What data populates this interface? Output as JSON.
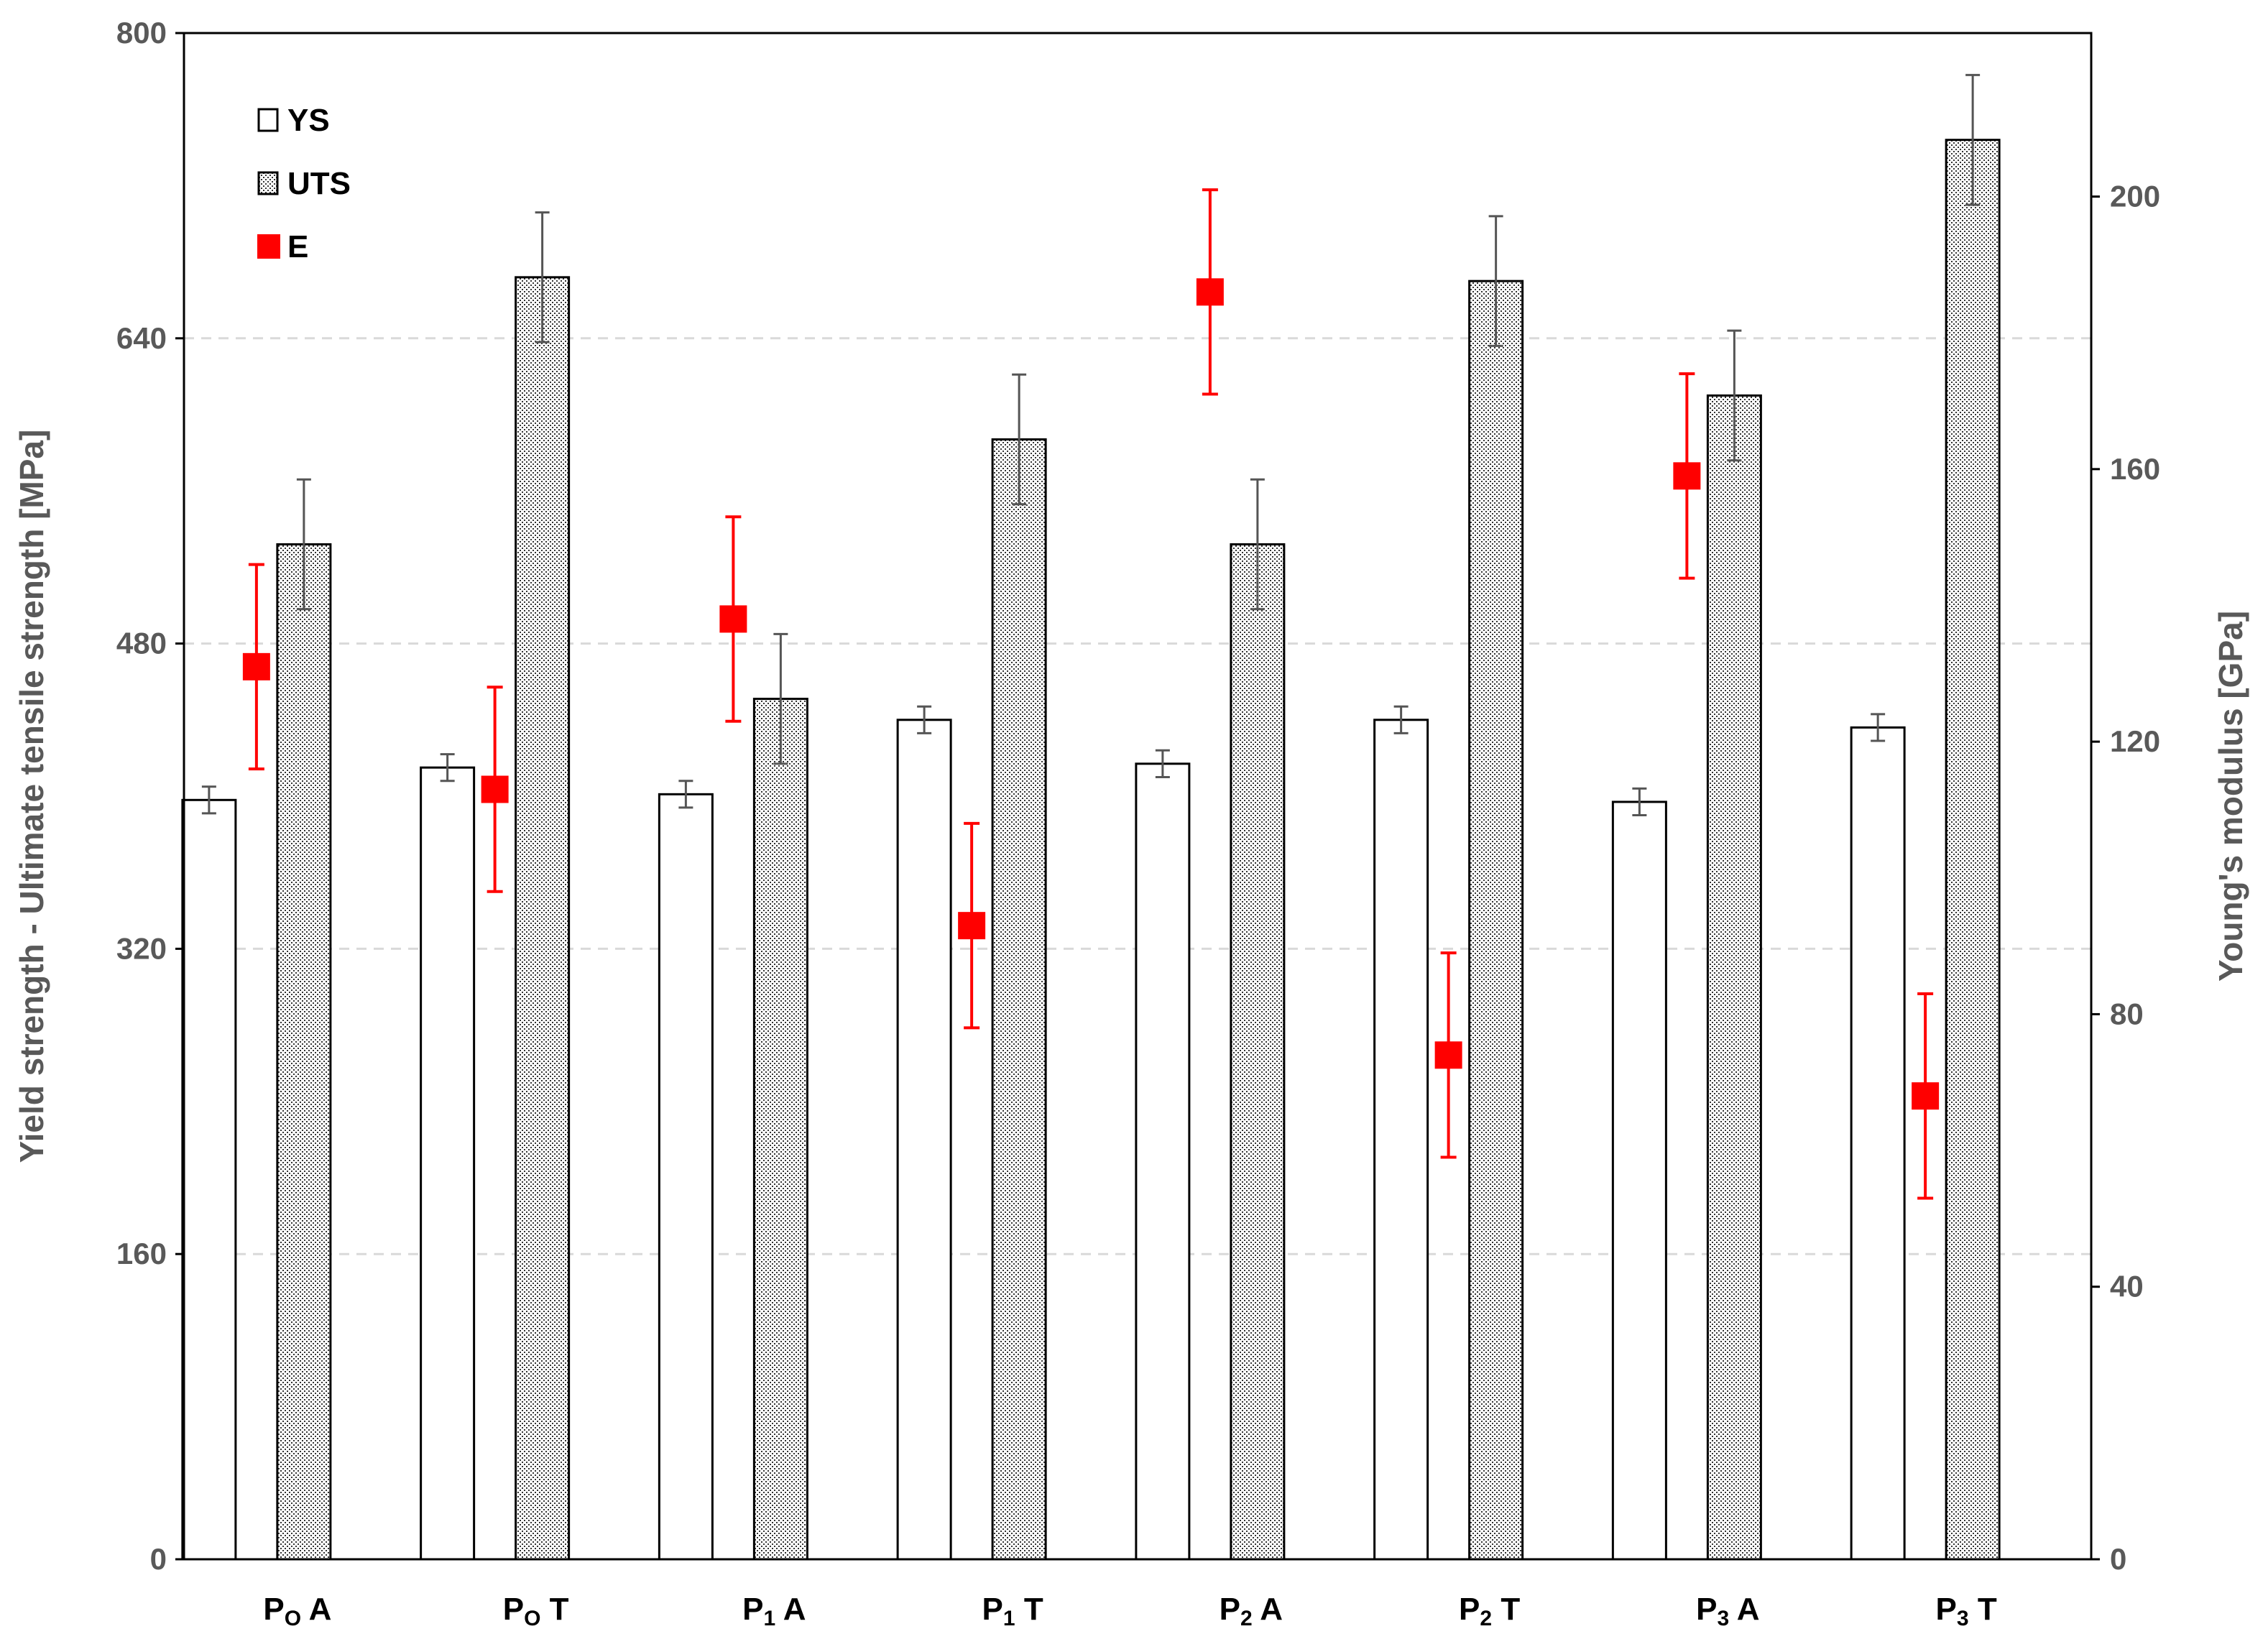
{
  "chart_data": {
    "type": "bar",
    "title": "",
    "ylabel": "Yield strength - Ultimate tensile strength [MPa]",
    "y2label": "Young's modulus [GPa]",
    "ylim": [
      0,
      800
    ],
    "y2lim": [
      0,
      224
    ],
    "yticks": [
      0,
      160,
      320,
      480,
      640,
      800
    ],
    "y2ticks": [
      0,
      40,
      80,
      120,
      160,
      200
    ],
    "grid": "horizontal dashed",
    "legend_position": "top-left",
    "categories": [
      {
        "main": "P",
        "sub": "O",
        "suffix": "A"
      },
      {
        "main": "P",
        "sub": "O",
        "suffix": "T"
      },
      {
        "main": "P",
        "sub": "1",
        "suffix": "A"
      },
      {
        "main": "P",
        "sub": "1",
        "suffix": "T"
      },
      {
        "main": "P",
        "sub": "2",
        "suffix": "A"
      },
      {
        "main": "P",
        "sub": "2",
        "suffix": "T"
      },
      {
        "main": "P",
        "sub": "3",
        "suffix": "A"
      },
      {
        "main": "P",
        "sub": "3",
        "suffix": "T"
      }
    ],
    "series": [
      {
        "name": "YS",
        "axis": "left",
        "style": "open bar",
        "values": [
          398,
          415,
          401,
          440,
          417,
          440,
          397,
          436
        ],
        "errors": [
          7,
          7,
          7,
          7,
          7,
          7,
          7,
          7
        ]
      },
      {
        "name": "UTS",
        "axis": "left",
        "style": "dotted bar",
        "values": [
          532,
          672,
          451,
          587,
          532,
          670,
          610,
          744
        ],
        "errors": [
          34,
          34,
          34,
          34,
          34,
          34,
          34,
          34
        ]
      },
      {
        "name": "E",
        "axis": "right",
        "style": "marker",
        "color": "#ff0000",
        "values": [
          131,
          113,
          138,
          93,
          186,
          74,
          159,
          68
        ],
        "errors": [
          15,
          15,
          15,
          15,
          15,
          15,
          15,
          15
        ]
      }
    ]
  },
  "colors": {
    "axis_text": "#595959",
    "e_marker": "#ff0000",
    "grid": "#d9d9d9",
    "error_bar": "#555555"
  }
}
